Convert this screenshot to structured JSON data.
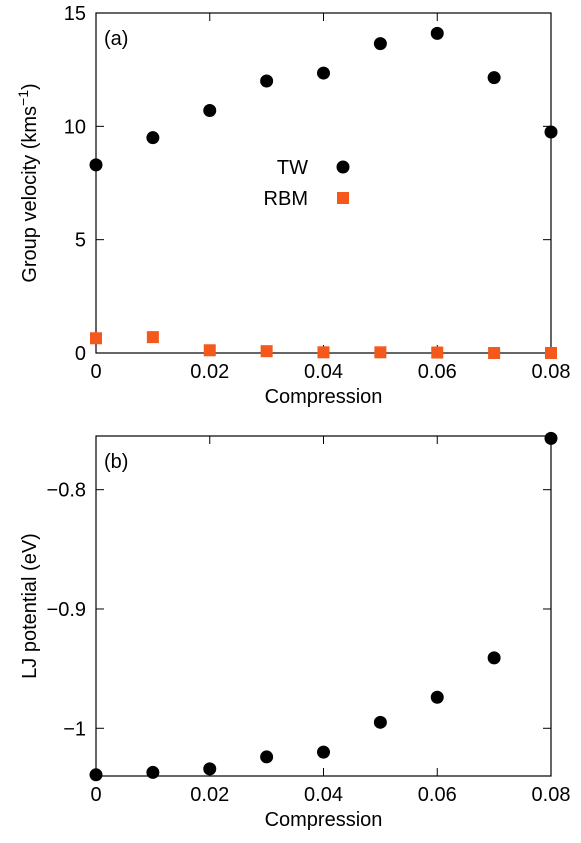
{
  "chart_data": [
    {
      "type": "scatter",
      "panel_label": "(a)",
      "xlabel": "Compression",
      "ylabel_main": "Group velocity (kms",
      "ylabel_sup": "−1",
      "ylabel_close": ")",
      "xlim": [
        0,
        0.08
      ],
      "ylim": [
        0,
        15
      ],
      "xticks": [
        0,
        0.02,
        0.04,
        0.06,
        0.08
      ],
      "xtick_labels": [
        "0",
        "0.02",
        "0.04",
        "0.06",
        "0.08"
      ],
      "yticks": [
        0,
        5,
        10,
        15
      ],
      "ytick_labels": [
        "0",
        "5",
        "10",
        "15"
      ],
      "grid": false,
      "legend_position": "center",
      "series": [
        {
          "name": "TW",
          "marker": "circle",
          "color": "#000000",
          "x": [
            0,
            0.01,
            0.02,
            0.03,
            0.04,
            0.05,
            0.06,
            0.07,
            0.08
          ],
          "y": [
            8.3,
            9.5,
            10.7,
            12.0,
            12.35,
            13.65,
            14.1,
            12.15,
            9.75
          ]
        },
        {
          "name": "RBM",
          "marker": "square",
          "color": "#f4581b",
          "x": [
            0,
            0.01,
            0.02,
            0.03,
            0.04,
            0.05,
            0.06,
            0.07,
            0.08
          ],
          "y": [
            0.65,
            0.7,
            0.12,
            0.08,
            0.03,
            0.03,
            0.02,
            0.0,
            0.0
          ]
        }
      ]
    },
    {
      "type": "scatter",
      "panel_label": "(b)",
      "xlabel": "Compression",
      "ylabel": "LJ potential (eV)",
      "xlim": [
        0,
        0.08
      ],
      "ylim": [
        -1.04,
        -0.755
      ],
      "xticks": [
        0,
        0.02,
        0.04,
        0.06,
        0.08
      ],
      "xtick_labels": [
        "0",
        "0.02",
        "0.04",
        "0.06",
        "0.08"
      ],
      "yticks": [
        -1.0,
        -0.9,
        -0.8
      ],
      "ytick_labels": [
        "−1",
        "−0.9",
        "−0.8"
      ],
      "grid": false,
      "series": [
        {
          "marker": "circle",
          "color": "#000000",
          "x": [
            0,
            0.01,
            0.02,
            0.03,
            0.04,
            0.05,
            0.06,
            0.07,
            0.08
          ],
          "y": [
            -1.039,
            -1.037,
            -1.034,
            -1.024,
            -1.02,
            -0.995,
            -0.974,
            -0.941,
            -0.757
          ]
        }
      ]
    }
  ]
}
